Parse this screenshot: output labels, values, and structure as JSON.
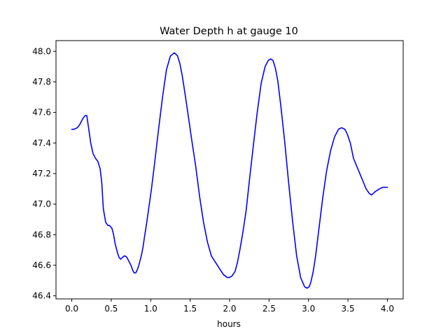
{
  "chart_data": {
    "type": "line",
    "title": "Water Depth h at gauge 10",
    "xlabel": "hours",
    "ylabel": "",
    "xlim": [
      -0.2,
      4.2
    ],
    "ylim": [
      46.38,
      48.07
    ],
    "xticks": [
      0.0,
      0.5,
      1.0,
      1.5,
      2.0,
      2.5,
      3.0,
      3.5,
      4.0
    ],
    "xtick_labels": [
      "0.0",
      "0.5",
      "1.0",
      "1.5",
      "2.0",
      "2.5",
      "3.0",
      "3.5",
      "4.0"
    ],
    "yticks": [
      46.4,
      46.6,
      46.8,
      47.0,
      47.2,
      47.4,
      47.6,
      47.8,
      48.0
    ],
    "ytick_labels": [
      "46.4",
      "46.6",
      "46.8",
      "47.0",
      "47.2",
      "47.4",
      "47.6",
      "47.8",
      "48.0"
    ],
    "grid": false,
    "legend": "none",
    "series": [
      {
        "color": "#0000ff",
        "x": [
          0.0,
          0.03,
          0.07,
          0.1,
          0.14,
          0.17,
          0.19,
          0.21,
          0.24,
          0.27,
          0.3,
          0.33,
          0.36,
          0.38,
          0.4,
          0.43,
          0.46,
          0.48,
          0.51,
          0.53,
          0.55,
          0.58,
          0.6,
          0.62,
          0.64,
          0.66,
          0.68,
          0.7,
          0.73,
          0.75,
          0.77,
          0.79,
          0.81,
          0.83,
          0.85,
          0.88,
          0.9,
          0.92,
          0.95,
          0.98,
          1.01,
          1.05,
          1.1,
          1.15,
          1.2,
          1.25,
          1.3,
          1.34,
          1.37,
          1.4,
          1.43,
          1.47,
          1.52,
          1.57,
          1.62,
          1.67,
          1.72,
          1.77,
          1.82,
          1.87,
          1.92,
          1.97,
          2.0,
          2.03,
          2.07,
          2.1,
          2.13,
          2.17,
          2.21,
          2.25,
          2.3,
          2.35,
          2.4,
          2.45,
          2.49,
          2.52,
          2.55,
          2.58,
          2.61,
          2.65,
          2.7,
          2.75,
          2.8,
          2.85,
          2.9,
          2.95,
          2.98,
          3.01,
          3.03,
          3.06,
          3.09,
          3.13,
          3.18,
          3.23,
          3.28,
          3.33,
          3.38,
          3.42,
          3.46,
          3.49,
          3.53,
          3.57,
          3.61,
          3.65,
          3.69,
          3.73,
          3.77,
          3.8,
          3.84,
          3.87,
          3.9,
          3.94,
          3.98,
          4.0
        ],
        "y": [
          47.49,
          47.49,
          47.5,
          47.52,
          47.56,
          47.58,
          47.58,
          47.51,
          47.4,
          47.33,
          47.3,
          47.28,
          47.23,
          47.14,
          46.97,
          46.88,
          46.86,
          46.86,
          46.84,
          46.8,
          46.74,
          46.68,
          46.65,
          46.64,
          46.65,
          46.66,
          46.66,
          46.65,
          46.62,
          46.6,
          46.57,
          46.55,
          46.55,
          46.57,
          46.6,
          46.66,
          46.71,
          46.78,
          46.88,
          46.99,
          47.1,
          47.27,
          47.49,
          47.7,
          47.88,
          47.97,
          47.99,
          47.97,
          47.92,
          47.84,
          47.74,
          47.6,
          47.42,
          47.25,
          47.05,
          46.88,
          46.75,
          46.66,
          46.62,
          46.58,
          46.54,
          46.52,
          46.52,
          46.53,
          46.56,
          46.62,
          46.7,
          46.82,
          46.96,
          47.15,
          47.38,
          47.6,
          47.79,
          47.9,
          47.94,
          47.95,
          47.94,
          47.89,
          47.81,
          47.64,
          47.4,
          47.13,
          46.88,
          46.66,
          46.52,
          46.46,
          46.45,
          46.46,
          46.49,
          46.56,
          46.66,
          46.83,
          47.04,
          47.22,
          47.35,
          47.44,
          47.49,
          47.5,
          47.49,
          47.46,
          47.4,
          47.3,
          47.25,
          47.2,
          47.15,
          47.1,
          47.07,
          47.06,
          47.08,
          47.09,
          47.1,
          47.11,
          47.11,
          47.11
        ]
      }
    ]
  }
}
